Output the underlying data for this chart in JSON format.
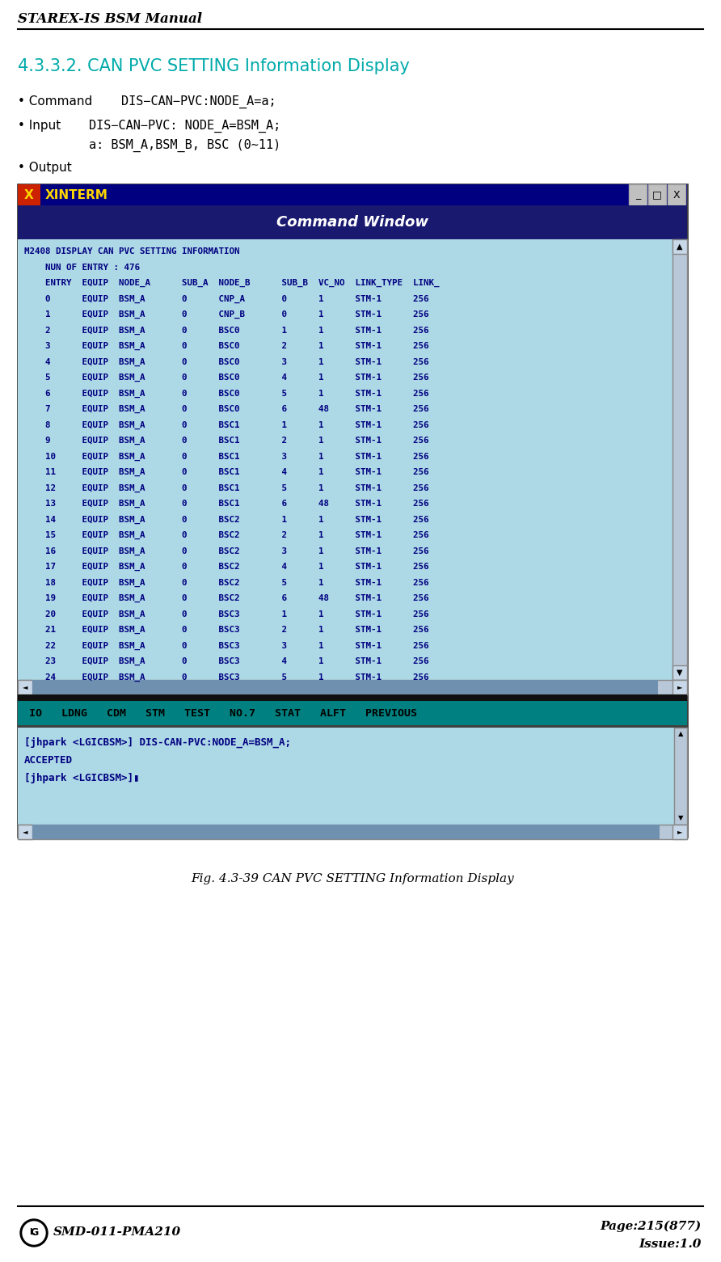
{
  "title_header": "STAREX-IS BSM Manual",
  "section_title": "4.3.3.2. CAN PVC SETTING Information Display",
  "section_title_color": "#00AAAA",
  "cmd_window_title": "Command Window",
  "terminal_bg": "#ADD8E6",
  "terminal_text_color": "#000080",
  "terminal_lines": [
    "M2408 DISPLAY CAN PVC SETTING INFORMATION",
    "    NUN OF ENTRY : 476",
    "    ENTRY  EQUIP  NODE_A      SUB_A  NODE_B      SUB_B  VC_NO  LINK_TYPE  LINK_",
    "    0      EQUIP  BSM_A       0      CNP_A       0      1      STM-1      256",
    "    1      EQUIP  BSM_A       0      CNP_B       0      1      STM-1      256",
    "    2      EQUIP  BSM_A       0      BSC0        1      1      STM-1      256",
    "    3      EQUIP  BSM_A       0      BSC0        2      1      STM-1      256",
    "    4      EQUIP  BSM_A       0      BSC0        3      1      STM-1      256",
    "    5      EQUIP  BSM_A       0      BSC0        4      1      STM-1      256",
    "    6      EQUIP  BSM_A       0      BSC0        5      1      STM-1      256",
    "    7      EQUIP  BSM_A       0      BSC0        6      48     STM-1      256",
    "    8      EQUIP  BSM_A       0      BSC1        1      1      STM-1      256",
    "    9      EQUIP  BSM_A       0      BSC1        2      1      STM-1      256",
    "    10     EQUIP  BSM_A       0      BSC1        3      1      STM-1      256",
    "    11     EQUIP  BSM_A       0      BSC1        4      1      STM-1      256",
    "    12     EQUIP  BSM_A       0      BSC1        5      1      STM-1      256",
    "    13     EQUIP  BSM_A       0      BSC1        6      48     STM-1      256",
    "    14     EQUIP  BSM_A       0      BSC2        1      1      STM-1      256",
    "    15     EQUIP  BSM_A       0      BSC2        2      1      STM-1      256",
    "    16     EQUIP  BSM_A       0      BSC2        3      1      STM-1      256",
    "    17     EQUIP  BSM_A       0      BSC2        4      1      STM-1      256",
    "    18     EQUIP  BSM_A       0      BSC2        5      1      STM-1      256",
    "    19     EQUIP  BSM_A       0      BSC2        6      48     STM-1      256",
    "    20     EQUIP  BSM_A       0      BSC3        1      1      STM-1      256",
    "    21     EQUIP  BSM_A       0      BSC3        2      1      STM-1      256",
    "    22     EQUIP  BSM_A       0      BSC3        3      1      STM-1      256",
    "    23     EQUIP  BSM_A       0      BSC3        4      1      STM-1      256",
    "    24     EQUIP  BSM_A       0      BSC3        5      1      STM-1      256"
  ],
  "bottom_bar_text": "IO   LDNG   CDM   STM   TEST   NO.7   STAT   ALFT   PREVIOUS",
  "bottom_bar_bg": "#008080",
  "input_lines": [
    "[jhpark <LGICBSM>] DIS-CAN-PVC:NODE_A=BSM_A;",
    "ACCEPTED",
    "[jhpark <LGICBSM>]▮"
  ],
  "fig_caption": "Fig. 4.3-39 CAN PVC SETTING Information Display",
  "footer_left": "SMD-011-PMA210",
  "footer_right_line1": "Page:215(877)",
  "footer_right_line2": "Issue:1.0",
  "bg_color": "#FFFFFF",
  "win_titlebar_bg": "#000080",
  "win_titlebar_fg": "#FFD700",
  "win_x_icon_bg": "#CC2200",
  "win_border_bg": "#B0C8D8",
  "win_outer_bg": "#8090A0"
}
